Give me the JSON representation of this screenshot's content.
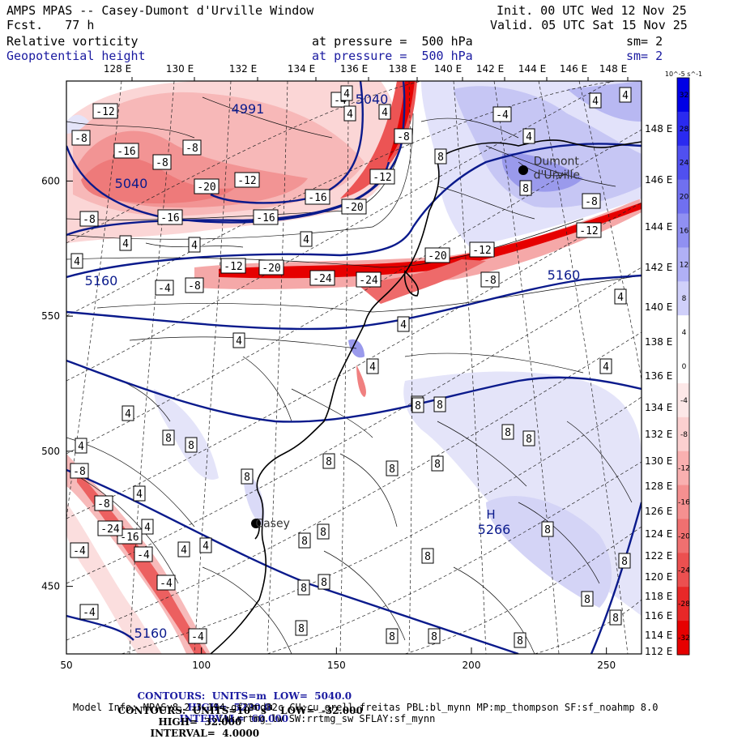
{
  "header": {
    "title": "AMPS MPAS -- Casey-Dumont d'Urville Window",
    "forecast": "Fcst.   77 h",
    "init": "Init. 00 UTC Wed 12 Nov 25",
    "valid": "Valid. 05 UTC Sat 15 Nov 25",
    "field1_name": "Relative vorticity",
    "field1_level": "at pressure =  500 hPa",
    "field1_smooth": "sm= 2",
    "field2_name": "Geopotential height",
    "field2_level": "at pressure =  500 hPa",
    "field2_smooth": "sm= 2"
  },
  "axes": {
    "x_ticks": [
      "50",
      "100",
      "150",
      "200",
      "250"
    ],
    "x_tick_values": [
      50,
      100,
      150,
      200,
      250
    ],
    "y_ticks": [
      "450",
      "500",
      "550",
      "600"
    ],
    "y_tick_values": [
      450,
      500,
      550,
      600
    ],
    "x_range": [
      50,
      263
    ],
    "y_range": [
      425,
      637
    ],
    "lon_labels": [
      "128 E",
      "130 E",
      "132 E",
      "134 E",
      "136 E",
      "138 E",
      "140 E",
      "142 E",
      "144 E",
      "146 E",
      "148 E"
    ],
    "lat_labels": [
      "148 E",
      "146 E",
      "144 E",
      "142 E",
      "140 E",
      "138 E",
      "136 E",
      "134 E",
      "132 E",
      "130 E",
      "128 E",
      "126 E",
      "124 E",
      "122 E",
      "120 E",
      "118 E",
      "116 E",
      "114 E",
      "112 E"
    ]
  },
  "places": [
    {
      "name": "Dumont",
      "sub": "d'Urville",
      "x": 223,
      "y": 606
    },
    {
      "name": "Casey",
      "x": 120,
      "y": 472
    }
  ],
  "height_labels": [
    "4991",
    "5040",
    "5040",
    "5160",
    "5160",
    "5160",
    "5266"
  ],
  "high_marker": "H",
  "vort_labels": [
    "-12",
    "-8",
    "-16",
    "-8",
    "-8",
    "-20",
    "-12",
    "-16",
    "-20",
    "-8",
    "-16",
    "-16",
    "-12",
    "-20",
    "-24",
    "-24",
    "-20",
    "-12",
    "-8",
    "-12",
    "-8",
    "-4",
    "-4",
    "-4",
    "-8",
    "-12",
    "-16",
    "-24",
    "-4",
    "-4",
    "-4",
    "-4",
    "-4",
    "-8",
    "-8",
    "-8",
    "4",
    "4",
    "4",
    "4",
    "4",
    "4",
    "4",
    "4",
    "4",
    "4",
    "4",
    "4",
    "4",
    "4",
    "4",
    "4",
    "4",
    "4",
    "4",
    "4",
    "4",
    "4",
    "8",
    "8",
    "8",
    "8",
    "8",
    "8",
    "8",
    "8",
    "8",
    "8",
    "8"
  ],
  "colorbar": {
    "unit": "10^-5 s^-1",
    "labels": [
      "32",
      "28",
      "24",
      "20",
      "16",
      "12",
      "8",
      "4",
      "0",
      "-4",
      "-8",
      "-12",
      "-16",
      "-20",
      "-24",
      "-28",
      "-32"
    ],
    "colors": [
      "#0000e6",
      "#2a2af0",
      "#5050f0",
      "#7070f0",
      "#9090f2",
      "#b0b0f6",
      "#d0d0fa",
      "#ffffff",
      "#ffffff",
      "#fde8e8",
      "#fbd0d0",
      "#f9b0b0",
      "#f59090",
      "#f07070",
      "#ec5050",
      "#e82828",
      "#e60000"
    ]
  },
  "footer": {
    "line1_a": "CONTOURS:  UNITS=m  LOW=  5040.0",
    "line1_b": "HIGH=  5220.0",
    "line1_c": "INTERVAL=  60.000",
    "line2_a": "CONTOURS:  UNITS=10",
    "line2_exp": "-5",
    "line2_s": " s",
    "line2_sexp": "-1",
    "line2_b": "  LOW=  -32.000",
    "line2_c": "HIGH=  32.000",
    "line2_d": "INTERVAL=  4.0000",
    "model_info": "Model Info: MPASv8.2.3-194-gf29cd82c CU:cu_grell_freitas PBL:bl_mynn MP:mp_thompson SF:sf_noahmp 8.0",
    "model_info2": "LW:rrtmg_lw SW:rrtmg_sw SFLAY:sf_mynn"
  },
  "colors": {
    "height_contour": "#0a1a8c",
    "positive_shade": "#c8c8f5",
    "negative_shade": "#f4a0a0",
    "strong_negative": "#e60000"
  }
}
